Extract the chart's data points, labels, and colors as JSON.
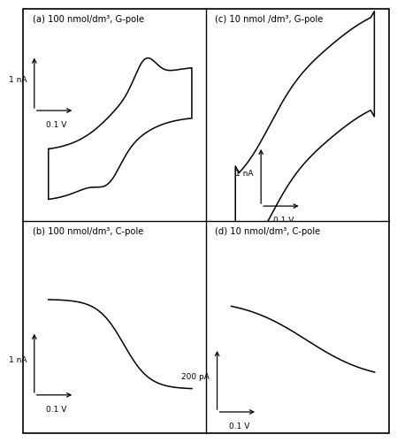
{
  "title_a": "(a) 100 nmol/dm³, G-pole",
  "title_b": "(b) 100 nmol/dm³, C-pole",
  "title_c": "(c) 10 nmol /dm³, G-pole",
  "title_d": "(d) 10 nmol/dm³, C-pole",
  "scale_a": "1 nA",
  "scale_b": "1 nA",
  "scale_c": "1 nA",
  "scale_d": "200 pA",
  "scale_v": "0.1 V",
  "line_color": "#000000",
  "bg_color": "#ffffff"
}
